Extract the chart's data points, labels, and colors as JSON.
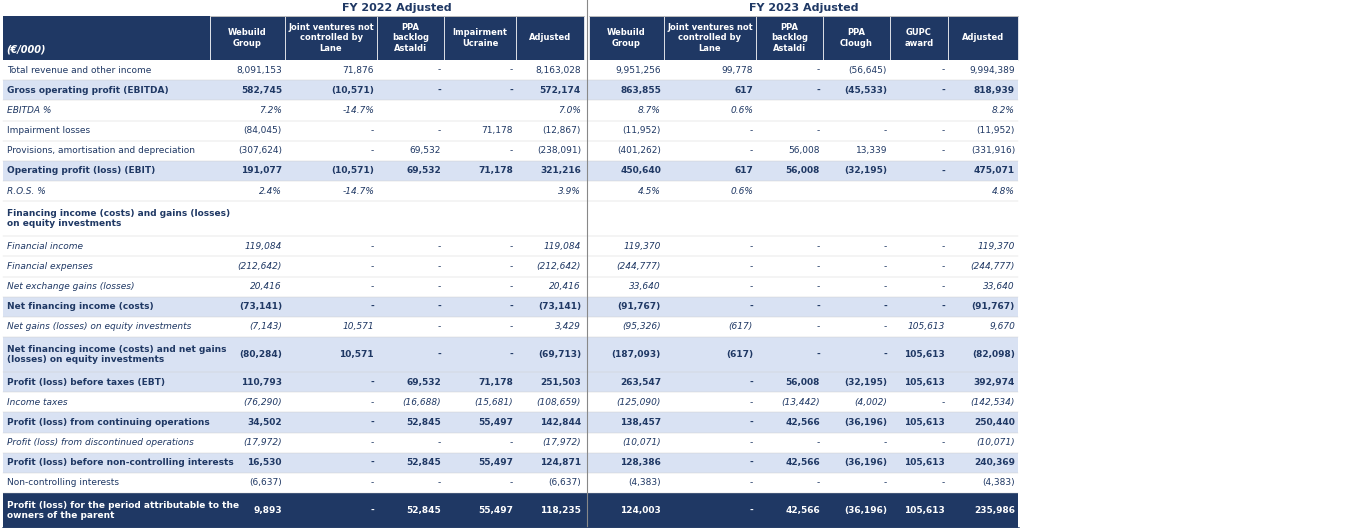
{
  "title_fy2022": "FY 2022 Adjusted",
  "title_fy2023": "FY 2023 Adjusted",
  "header_label": "(€/000)",
  "col_headers_2022": [
    "Webuild\nGroup",
    "Joint ventures not\ncontrolled by\nLane",
    "PPA\nbacklog\nAstaldi",
    "Impairment\nUcraine",
    "Adjusted"
  ],
  "col_headers_2023": [
    "Webuild\nGroup",
    "Joint ventures not\ncontrolled by\nLane",
    "PPA\nbacklog\nAstaldi",
    "PPA\nClough",
    "GUPC\naward",
    "Adjusted"
  ],
  "rows": [
    {
      "label": "Total revenue and other income",
      "bold": false,
      "italic": false,
      "shaded": false,
      "two_line": false,
      "fy2022": [
        "8,091,153",
        "71,876",
        "-",
        "-",
        "8,163,028"
      ],
      "fy2023": [
        "9,951,256",
        "99,778",
        "-",
        "(56,645)",
        "-",
        "9,994,389"
      ]
    },
    {
      "label": "Gross operating profit (EBITDA)",
      "bold": true,
      "italic": false,
      "shaded": true,
      "two_line": false,
      "fy2022": [
        "582,745",
        "(10,571)",
        "-",
        "-",
        "572,174"
      ],
      "fy2023": [
        "863,855",
        "617",
        "-",
        "(45,533)",
        "-",
        "818,939"
      ]
    },
    {
      "label": "EBITDA %",
      "bold": false,
      "italic": true,
      "shaded": false,
      "two_line": false,
      "fy2022": [
        "7.2%",
        "-14.7%",
        "",
        "",
        "7.0%"
      ],
      "fy2023": [
        "8.7%",
        "0.6%",
        "",
        "",
        "",
        "8.2%"
      ]
    },
    {
      "label": "Impairment losses",
      "bold": false,
      "italic": false,
      "shaded": false,
      "two_line": false,
      "fy2022": [
        "(84,045)",
        "-",
        "-",
        "71,178",
        "(12,867)"
      ],
      "fy2023": [
        "(11,952)",
        "-",
        "-",
        "-",
        "-",
        "(11,952)"
      ]
    },
    {
      "label": "Provisions, amortisation and depreciation",
      "bold": false,
      "italic": false,
      "shaded": false,
      "two_line": false,
      "fy2022": [
        "(307,624)",
        "-",
        "69,532",
        "-",
        "(238,091)"
      ],
      "fy2023": [
        "(401,262)",
        "-",
        "56,008",
        "13,339",
        "-",
        "(331,916)"
      ]
    },
    {
      "label": "Operating profit (loss) (EBIT)",
      "bold": true,
      "italic": false,
      "shaded": true,
      "two_line": false,
      "fy2022": [
        "191,077",
        "(10,571)",
        "69,532",
        "71,178",
        "321,216"
      ],
      "fy2023": [
        "450,640",
        "617",
        "56,008",
        "(32,195)",
        "-",
        "475,071"
      ]
    },
    {
      "label": "R.O.S. %",
      "bold": false,
      "italic": true,
      "shaded": false,
      "two_line": false,
      "fy2022": [
        "2.4%",
        "-14.7%",
        "",
        "",
        "3.9%"
      ],
      "fy2023": [
        "4.5%",
        "0.6%",
        "",
        "",
        "",
        "4.8%"
      ]
    },
    {
      "label": "Financing income (costs) and gains (losses)\non equity investments",
      "bold": true,
      "italic": false,
      "shaded": false,
      "two_line": true,
      "fy2022": [
        "",
        "",
        "",
        "",
        ""
      ],
      "fy2023": [
        "",
        "",
        "",
        "",
        "",
        ""
      ]
    },
    {
      "label": "Financial income",
      "bold": false,
      "italic": true,
      "shaded": false,
      "two_line": false,
      "fy2022": [
        "119,084",
        "-",
        "-",
        "-",
        "119,084"
      ],
      "fy2023": [
        "119,370",
        "-",
        "-",
        "-",
        "-",
        "119,370"
      ]
    },
    {
      "label": "Financial expenses",
      "bold": false,
      "italic": true,
      "shaded": false,
      "two_line": false,
      "fy2022": [
        "(212,642)",
        "-",
        "-",
        "-",
        "(212,642)"
      ],
      "fy2023": [
        "(244,777)",
        "-",
        "-",
        "-",
        "-",
        "(244,777)"
      ]
    },
    {
      "label": "Net exchange gains (losses)",
      "bold": false,
      "italic": true,
      "shaded": false,
      "two_line": false,
      "fy2022": [
        "20,416",
        "-",
        "-",
        "-",
        "20,416"
      ],
      "fy2023": [
        "33,640",
        "-",
        "-",
        "-",
        "-",
        "33,640"
      ]
    },
    {
      "label": "Net financing income (costs)",
      "bold": true,
      "italic": false,
      "shaded": true,
      "two_line": false,
      "fy2022": [
        "(73,141)",
        "-",
        "-",
        "-",
        "(73,141)"
      ],
      "fy2023": [
        "(91,767)",
        "-",
        "-",
        "-",
        "-",
        "(91,767)"
      ]
    },
    {
      "label": "Net gains (losses) on equity investments",
      "bold": false,
      "italic": true,
      "shaded": false,
      "two_line": false,
      "fy2022": [
        "(7,143)",
        "10,571",
        "-",
        "-",
        "3,429"
      ],
      "fy2023": [
        "(95,326)",
        "(617)",
        "-",
        "-",
        "105,613",
        "9,670"
      ]
    },
    {
      "label": "Net financing income (costs) and net gains\n(losses) on equity investments",
      "bold": true,
      "italic": false,
      "shaded": true,
      "two_line": true,
      "fy2022": [
        "(80,284)",
        "10,571",
        "-",
        "-",
        "(69,713)"
      ],
      "fy2023": [
        "(187,093)",
        "(617)",
        "-",
        "-",
        "105,613",
        "(82,098)"
      ]
    },
    {
      "label": "Profit (loss) before taxes (EBT)",
      "bold": true,
      "italic": false,
      "shaded": true,
      "two_line": false,
      "fy2022": [
        "110,793",
        "-",
        "69,532",
        "71,178",
        "251,503"
      ],
      "fy2023": [
        "263,547",
        "-",
        "56,008",
        "(32,195)",
        "105,613",
        "392,974"
      ]
    },
    {
      "label": "Income taxes",
      "bold": false,
      "italic": true,
      "shaded": false,
      "two_line": false,
      "fy2022": [
        "(76,290)",
        "-",
        "(16,688)",
        "(15,681)",
        "(108,659)"
      ],
      "fy2023": [
        "(125,090)",
        "-",
        "(13,442)",
        "(4,002)",
        "-",
        "(142,534)"
      ]
    },
    {
      "label": "Profit (loss) from continuing operations",
      "bold": true,
      "italic": false,
      "shaded": true,
      "two_line": false,
      "fy2022": [
        "34,502",
        "-",
        "52,845",
        "55,497",
        "142,844"
      ],
      "fy2023": [
        "138,457",
        "-",
        "42,566",
        "(36,196)",
        "105,613",
        "250,440"
      ]
    },
    {
      "label": "Profit (loss) from discontinued operations",
      "bold": false,
      "italic": true,
      "shaded": false,
      "two_line": false,
      "fy2022": [
        "(17,972)",
        "-",
        "-",
        "-",
        "(17,972)"
      ],
      "fy2023": [
        "(10,071)",
        "-",
        "-",
        "-",
        "-",
        "(10,071)"
      ]
    },
    {
      "label": "Profit (loss) before non-controlling interests",
      "bold": true,
      "italic": false,
      "shaded": true,
      "two_line": false,
      "fy2022": [
        "16,530",
        "-",
        "52,845",
        "55,497",
        "124,871"
      ],
      "fy2023": [
        "128,386",
        "-",
        "42,566",
        "(36,196)",
        "105,613",
        "240,369"
      ]
    },
    {
      "label": "Non-controlling interests",
      "bold": false,
      "italic": false,
      "shaded": false,
      "two_line": false,
      "fy2022": [
        "(6,637)",
        "-",
        "-",
        "-",
        "(6,637)"
      ],
      "fy2023": [
        "(4,383)",
        "-",
        "-",
        "-",
        "-",
        "(4,383)"
      ]
    },
    {
      "label": "Profit (loss) for the period attributable to the\nowners of the parent",
      "bold": true,
      "italic": false,
      "shaded": true,
      "bottom_dark": true,
      "two_line": true,
      "fy2022": [
        "9,893",
        "-",
        "52,845",
        "55,497",
        "118,235"
      ],
      "fy2023": [
        "124,003",
        "-",
        "42,566",
        "(36,196)",
        "105,613",
        "235,986"
      ]
    }
  ],
  "dark_header_color": "#1F3864",
  "shaded_row_color": "#D9E2F3",
  "white_row_color": "#FFFFFF",
  "dark_text_color": "#1F3864"
}
